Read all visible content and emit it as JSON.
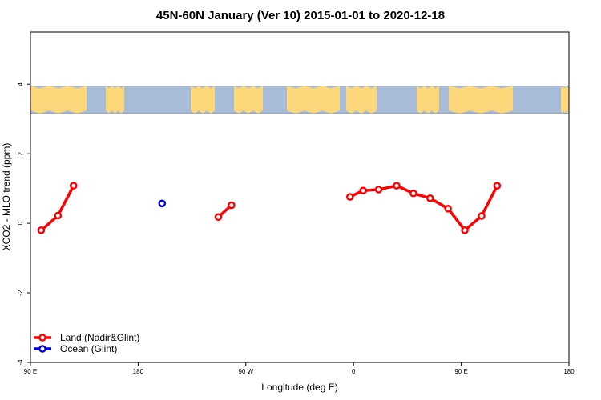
{
  "chart_data": {
    "type": "line",
    "title": "45N-60N January (Ver 10)   2015-01-01 to 2020-12-18",
    "xlabel": "Longitude (deg E)",
    "ylabel": "XCO2 - MLO trend (ppm)",
    "xlim": [
      90,
      540
    ],
    "ylim": [
      -4.0,
      5.5
    ],
    "x_ticks": [
      {
        "value": 90,
        "label": "90 E"
      },
      {
        "value": 180,
        "label": "180"
      },
      {
        "value": 270,
        "label": "90 W"
      },
      {
        "value": 360,
        "label": "0"
      },
      {
        "value": 450,
        "label": "90 E"
      },
      {
        "value": 540,
        "label": "180"
      }
    ],
    "y_ticks": [
      {
        "value": -4,
        "label": "-4"
      },
      {
        "value": -2,
        "label": "-2"
      },
      {
        "value": 0,
        "label": "0"
      },
      {
        "value": 2,
        "label": "2"
      },
      {
        "value": 4,
        "label": "4"
      }
    ],
    "map_band": {
      "ymin": 3.15,
      "ymax": 3.95,
      "ocean_color": "#a8bcd8",
      "land_color": "#fcd87a"
    },
    "series": [
      {
        "name": "Land (Nadir&Glint)",
        "color": "#ff0000",
        "segments": [
          [
            [
              99,
              -0.2
            ],
            [
              113,
              0.22
            ],
            [
              126,
              1.08
            ]
          ],
          [
            [
              247,
              0.18
            ],
            [
              258,
              0.52
            ]
          ],
          [
            [
              357,
              0.76
            ],
            [
              368,
              0.94
            ],
            [
              381,
              0.97
            ],
            [
              396,
              1.08
            ],
            [
              410,
              0.86
            ],
            [
              424,
              0.72
            ],
            [
              439,
              0.42
            ],
            [
              453,
              -0.2
            ],
            [
              467,
              0.21
            ],
            [
              480,
              1.08
            ]
          ]
        ]
      },
      {
        "name": "Ocean (Glint)",
        "color": "#0000dd",
        "segments": [
          [
            [
              200,
              0.57
            ]
          ]
        ]
      }
    ],
    "legend": {
      "position": "bottom-left"
    },
    "grid": false
  }
}
